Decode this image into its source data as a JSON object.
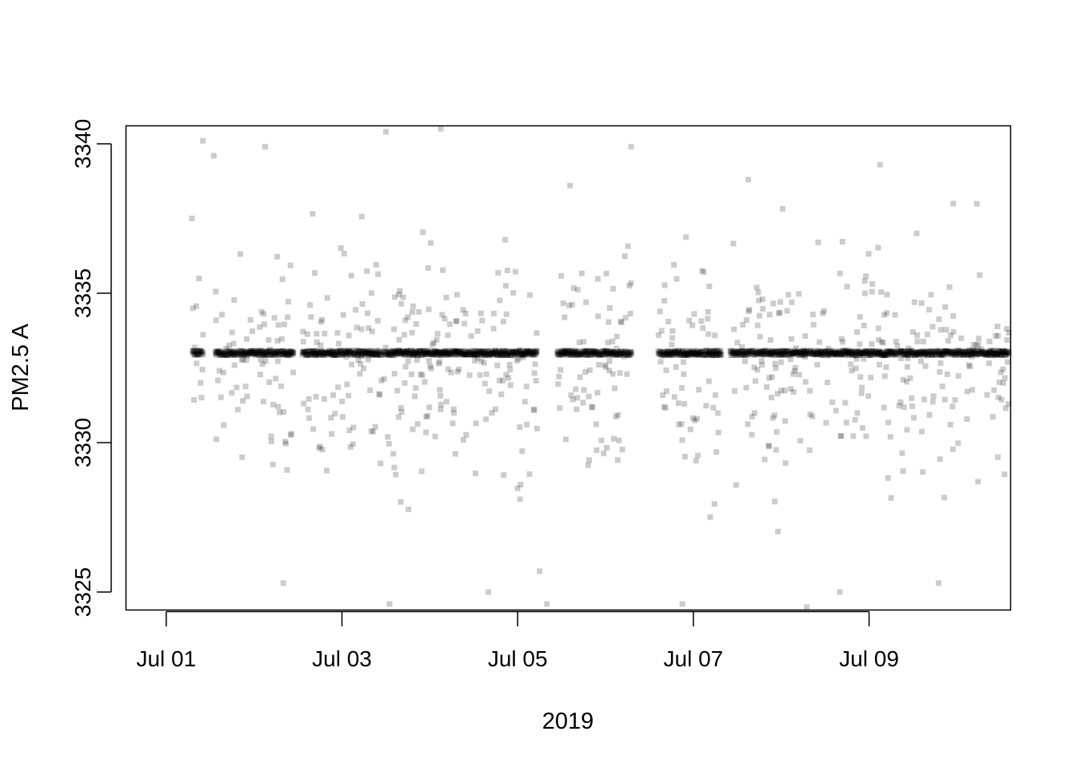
{
  "chart_data": {
    "type": "scatter",
    "title": "",
    "xlabel": "2019",
    "ylabel": "PM2.5 A",
    "x_axis_type": "date",
    "xlim": [
      "2019-07-00T13:00",
      "2019-07-10T14:40"
    ],
    "ylim": [
      3324.4,
      3340.6
    ],
    "x_ticks": [
      {
        "value": "2019-07-01",
        "label": "Jul 01"
      },
      {
        "value": "2019-07-03",
        "label": "Jul 03"
      },
      {
        "value": "2019-07-05",
        "label": "Jul 05"
      },
      {
        "value": "2019-07-07",
        "label": "Jul 07"
      },
      {
        "value": "2019-07-09",
        "label": "Jul 09"
      }
    ],
    "y_ticks": [
      {
        "value": 3325,
        "label": "3325"
      },
      {
        "value": 3330,
        "label": "3330"
      },
      {
        "value": 3335,
        "label": "3335"
      },
      {
        "value": 3340,
        "label": "3340"
      }
    ],
    "grid": false,
    "legend": "none",
    "marker": {
      "shape": "square",
      "color": "#000000",
      "opacity": 0.2
    },
    "series": [
      {
        "median_value": 3333,
        "spread_below": 7.5,
        "spread_above": 7.5,
        "sample_points": [
          {
            "x": "2019-07-01T07:00",
            "y": 3337.5
          },
          {
            "x": "2019-07-01T10:00",
            "y": 3340.1
          },
          {
            "x": "2019-07-01T13:00",
            "y": 3339.6
          },
          {
            "x": "2019-07-02T03:00",
            "y": 3339.9
          },
          {
            "x": "2019-07-02T08:00",
            "y": 3325.3
          },
          {
            "x": "2019-07-03T12:00",
            "y": 3340.4
          },
          {
            "x": "2019-07-03T13:00",
            "y": 3324.6
          },
          {
            "x": "2019-07-04T03:00",
            "y": 3340.5
          },
          {
            "x": "2019-07-04T16:00",
            "y": 3325.0
          },
          {
            "x": "2019-07-05T06:00",
            "y": 3325.7
          },
          {
            "x": "2019-07-05T08:00",
            "y": 3324.6
          },
          {
            "x": "2019-07-06T07:00",
            "y": 3339.9
          },
          {
            "x": "2019-07-06T21:00",
            "y": 3324.6
          },
          {
            "x": "2019-07-07T15:00",
            "y": 3338.8
          },
          {
            "x": "2019-07-08T07:00",
            "y": 3324.5
          },
          {
            "x": "2019-07-08T16:00",
            "y": 3325.0
          },
          {
            "x": "2019-07-09T03:00",
            "y": 3339.3
          },
          {
            "x": "2019-07-09T13:00",
            "y": 3337.0
          },
          {
            "x": "2019-07-09T19:00",
            "y": 3325.3
          },
          {
            "x": "2019-07-09T23:00",
            "y": 3338.0
          }
        ]
      }
    ]
  }
}
